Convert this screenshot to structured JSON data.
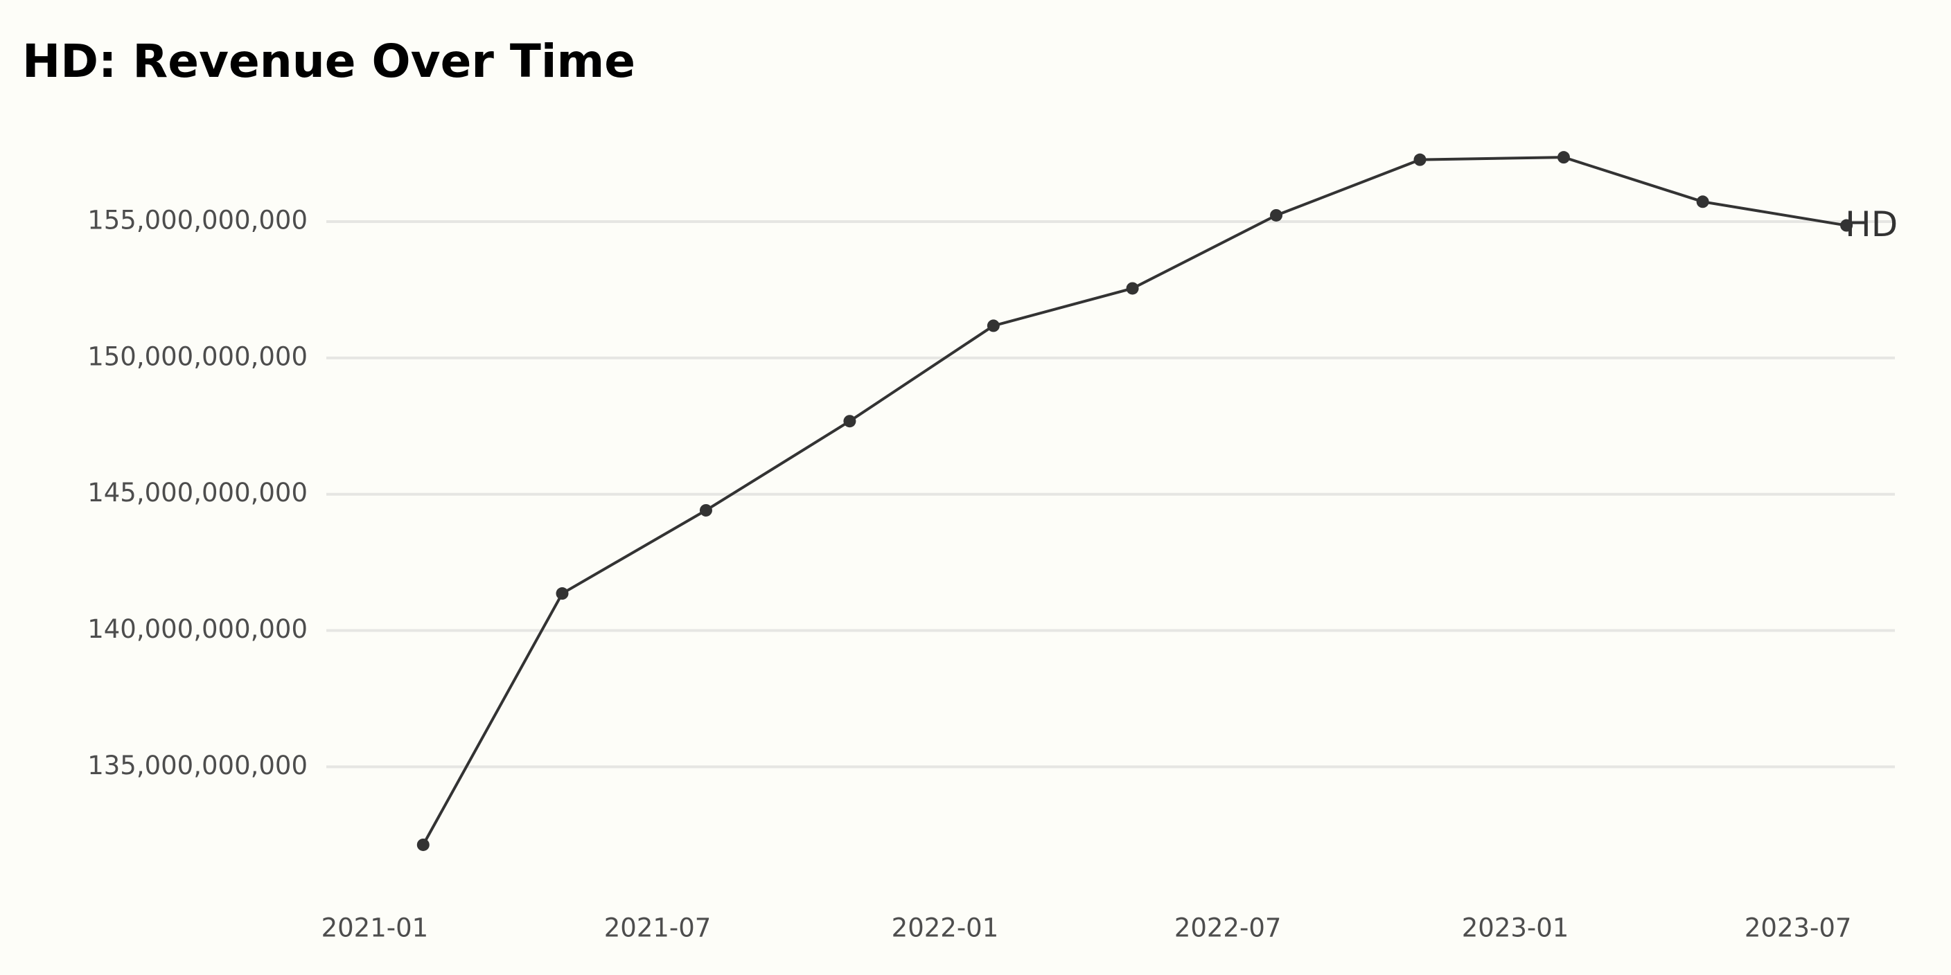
{
  "chart_data": {
    "type": "line",
    "title": "HD: Revenue Over Time",
    "x": [
      "2021-02",
      "2021-05",
      "2021-08",
      "2021-11",
      "2022-02",
      "2022-05",
      "2022-08",
      "2022-11",
      "2023-02",
      "2023-05",
      "2023-08"
    ],
    "series": [
      {
        "name": "HD",
        "color": "#333333",
        "values": [
          132140000000,
          141360000000,
          144410000000,
          147680000000,
          151180000000,
          152550000000,
          155230000000,
          157270000000,
          157360000000,
          155730000000,
          154860000000
        ]
      }
    ],
    "xlim": [
      "2020-12",
      "2023-09"
    ],
    "xticks": [
      "2021-01",
      "2021-07",
      "2022-01",
      "2022-07",
      "2023-01",
      "2023-07"
    ],
    "ylim": [
      131200000000,
      158100000000
    ],
    "yticks": [
      {
        "value": 135000000000,
        "label": "135,000,000,000"
      },
      {
        "value": 140000000000,
        "label": "140,000,000,000"
      },
      {
        "value": 145000000000,
        "label": "145,000,000,000"
      },
      {
        "value": 150000000000,
        "label": "150,000,000,000"
      },
      {
        "value": 155000000000,
        "label": "155,000,000,000"
      }
    ],
    "grid": true
  }
}
